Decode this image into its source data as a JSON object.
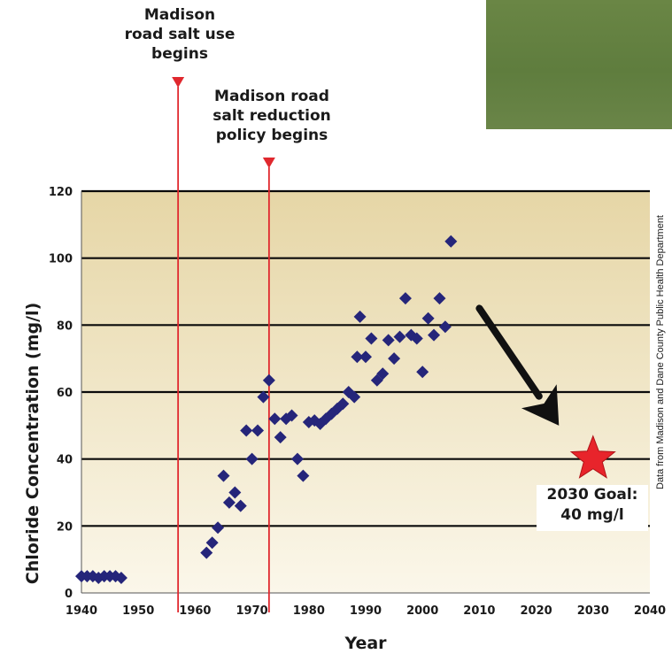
{
  "annotations": {
    "salt_use_begins": "Madison\nroad salt use\nbegins",
    "salt_reduction_begins": "Madison road\nsalt reduction\npolicy begins",
    "goal_label": "2030 Goal:\n40 mg/l",
    "source": "Data from Madison and Dane County Public Health Department"
  },
  "colors": {
    "points": "#25257a",
    "marker_lines": "#e0282e",
    "goal_star": "#e8242b",
    "arrow": "#111111",
    "plot_top": "#e6d6a6",
    "plot_bottom": "#fbf7ea",
    "photo_box": "#627f3f"
  },
  "chart_data": {
    "type": "scatter",
    "xlabel": "Year",
    "ylabel": "Chloride Concentration (mg/l)",
    "xlim": [
      1940,
      2040
    ],
    "ylim": [
      0,
      120
    ],
    "x_ticks": [
      1940,
      1950,
      1960,
      1970,
      1980,
      1990,
      2000,
      2010,
      2020,
      2030,
      2040
    ],
    "y_ticks": [
      0,
      20,
      40,
      60,
      80,
      100,
      120
    ],
    "grid": "horizontal",
    "points": [
      {
        "x": 1940,
        "y": 5
      },
      {
        "x": 1941,
        "y": 5
      },
      {
        "x": 1942,
        "y": 5
      },
      {
        "x": 1943,
        "y": 4.5
      },
      {
        "x": 1944,
        "y": 5
      },
      {
        "x": 1945,
        "y": 5
      },
      {
        "x": 1946,
        "y": 5
      },
      {
        "x": 1947,
        "y": 4.5
      },
      {
        "x": 1962,
        "y": 12
      },
      {
        "x": 1963,
        "y": 15
      },
      {
        "x": 1964,
        "y": 19.5
      },
      {
        "x": 1965,
        "y": 35
      },
      {
        "x": 1966,
        "y": 27
      },
      {
        "x": 1967,
        "y": 30
      },
      {
        "x": 1968,
        "y": 26
      },
      {
        "x": 1969,
        "y": 48.5
      },
      {
        "x": 1970,
        "y": 40
      },
      {
        "x": 1971,
        "y": 48.5
      },
      {
        "x": 1972,
        "y": 58.5
      },
      {
        "x": 1973,
        "y": 63.5
      },
      {
        "x": 1974,
        "y": 52
      },
      {
        "x": 1975,
        "y": 46.5
      },
      {
        "x": 1976,
        "y": 52
      },
      {
        "x": 1977,
        "y": 53
      },
      {
        "x": 1978,
        "y": 40
      },
      {
        "x": 1979,
        "y": 35
      },
      {
        "x": 1980,
        "y": 51
      },
      {
        "x": 1981,
        "y": 51.5
      },
      {
        "x": 1982,
        "y": 50.5
      },
      {
        "x": 1983,
        "y": 52
      },
      {
        "x": 1984,
        "y": 53.5
      },
      {
        "x": 1985,
        "y": 55
      },
      {
        "x": 1986,
        "y": 56.5
      },
      {
        "x": 1987,
        "y": 60
      },
      {
        "x": 1988,
        "y": 58.5
      },
      {
        "x": 1988.5,
        "y": 70.5
      },
      {
        "x": 1989,
        "y": 82.5
      },
      {
        "x": 1990,
        "y": 70.5
      },
      {
        "x": 1991,
        "y": 76
      },
      {
        "x": 1992,
        "y": 63.5
      },
      {
        "x": 1993,
        "y": 65.5
      },
      {
        "x": 1994,
        "y": 75.5
      },
      {
        "x": 1995,
        "y": 70
      },
      {
        "x": 1996,
        "y": 76.5
      },
      {
        "x": 1997,
        "y": 88
      },
      {
        "x": 1998,
        "y": 77
      },
      {
        "x": 1999,
        "y": 76
      },
      {
        "x": 2000,
        "y": 66
      },
      {
        "x": 2001,
        "y": 82
      },
      {
        "x": 2002,
        "y": 77
      },
      {
        "x": 2003,
        "y": 88
      },
      {
        "x": 2004,
        "y": 79.5
      },
      {
        "x": 2005,
        "y": 105
      }
    ],
    "vertical_markers": [
      {
        "x": 1957,
        "label_key": "salt_use_begins"
      },
      {
        "x": 1973,
        "label_key": "salt_reduction_begins"
      }
    ],
    "goal": {
      "x": 2030,
      "y": 40
    },
    "trend_arrow": {
      "from": [
        2010,
        85
      ],
      "to": [
        2024,
        50
      ]
    }
  }
}
